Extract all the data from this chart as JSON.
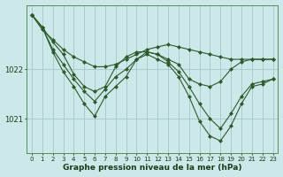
{
  "title": "Graphe pression niveau de la mer (hPa)",
  "background_color": "#cce8e8",
  "grid_color": "#aacccc",
  "line_color": "#2d5a2d",
  "xlim": [
    -0.5,
    23.5
  ],
  "ylim": [
    1020.3,
    1023.3
  ],
  "yticks": [
    1021,
    1022
  ],
  "xticks": [
    0,
    1,
    2,
    3,
    4,
    5,
    6,
    7,
    8,
    9,
    10,
    11,
    12,
    13,
    14,
    15,
    16,
    17,
    18,
    19,
    20,
    21,
    22,
    23
  ],
  "series": [
    [
      1023.1,
      1022.8,
      1022.6,
      1022.4,
      1022.25,
      1022.15,
      1022.05,
      1022.05,
      1022.1,
      1022.2,
      1022.3,
      1022.4,
      1022.45,
      1022.5,
      1022.45,
      1022.4,
      1022.35,
      1022.3,
      1022.25,
      1022.2,
      1022.2,
      1022.2,
      1022.2,
      1022.2
    ],
    [
      1023.1,
      1022.85,
      1022.55,
      1022.3,
      1021.9,
      1021.65,
      1021.55,
      1021.65,
      1022.05,
      1022.25,
      1022.35,
      1022.35,
      1022.3,
      1022.2,
      1022.1,
      1021.8,
      1021.7,
      1021.65,
      1021.75,
      1022.0,
      1022.15,
      1022.2,
      1022.2,
      1022.2
    ],
    [
      1023.1,
      1022.85,
      1022.4,
      1022.1,
      1021.8,
      1021.55,
      1021.35,
      1021.6,
      1021.85,
      1022.0,
      1022.2,
      1022.35,
      1022.3,
      1022.15,
      1021.95,
      1021.65,
      1021.3,
      1021.0,
      1020.8,
      1021.1,
      1021.45,
      1021.7,
      1021.75,
      1021.8
    ],
    [
      1023.1,
      1022.85,
      1022.35,
      1021.95,
      1021.65,
      1021.3,
      1021.05,
      1021.45,
      1021.65,
      1021.85,
      1022.2,
      1022.3,
      1022.2,
      1022.1,
      1021.85,
      1021.45,
      1020.95,
      1020.65,
      1020.55,
      1020.85,
      1021.3,
      1021.65,
      1021.7,
      1021.8
    ]
  ]
}
